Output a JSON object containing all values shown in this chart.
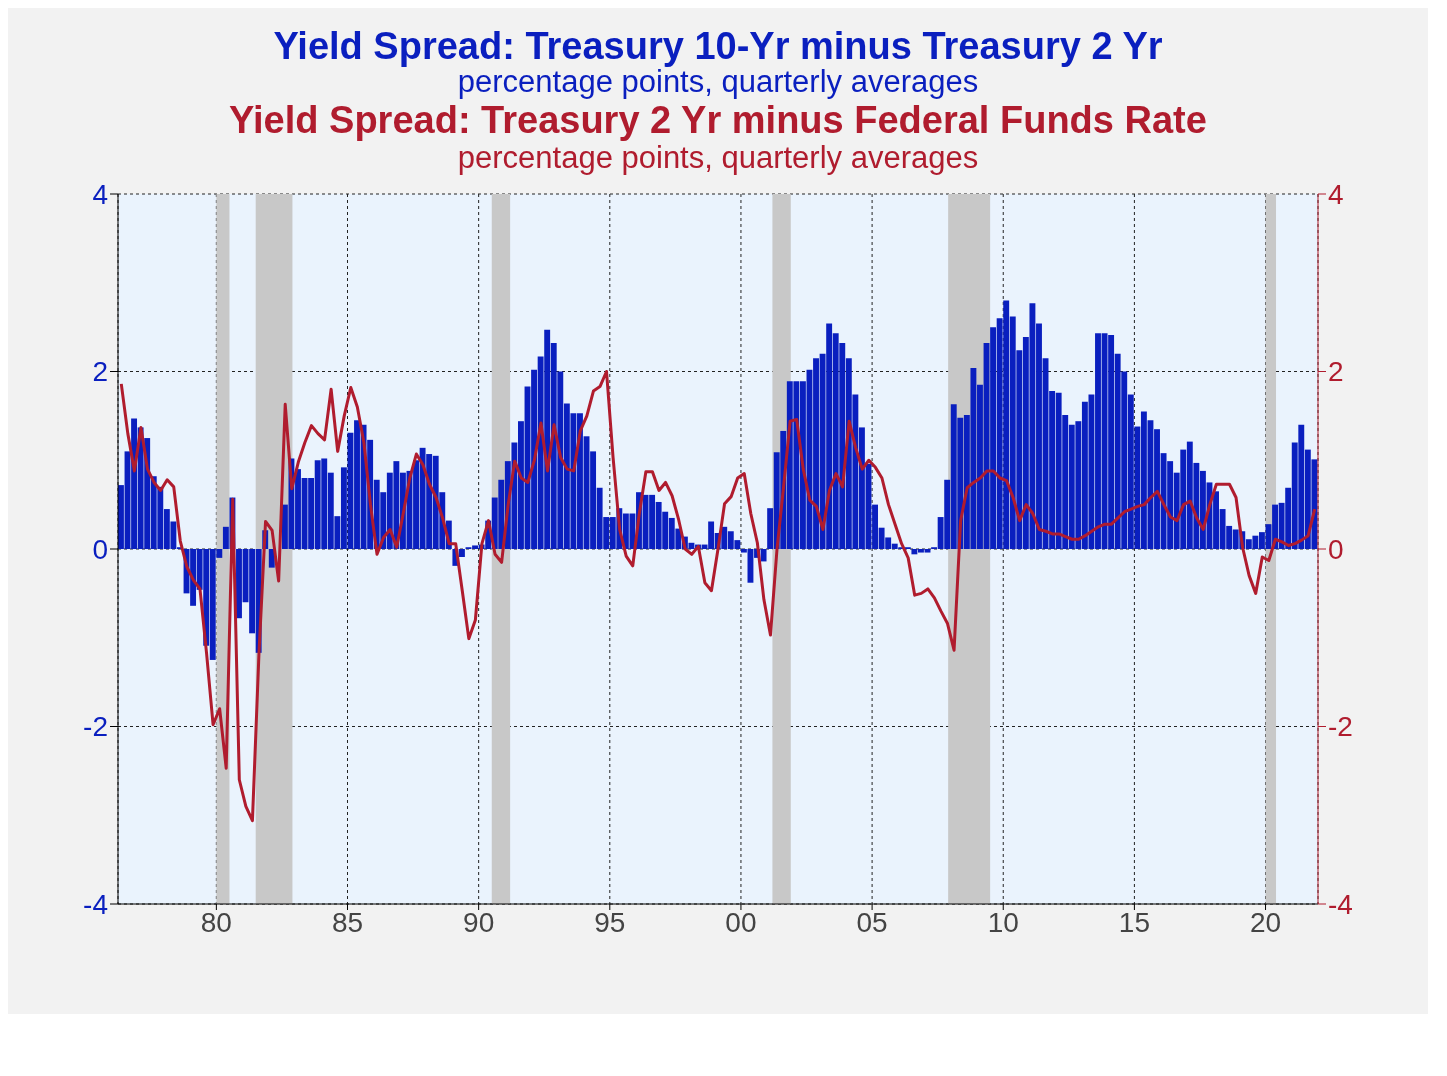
{
  "chart_data": {
    "type": "bar",
    "title": "Yield Spread: Treasury 10-Yr minus Treasury 2 Yr",
    "subtitle": "percentage points, quarterly averages",
    "annotations": [
      "Yield Spread: Treasury 2 Yr minus Federal Funds Rate",
      "percentage points, quarterly averages"
    ],
    "x": [
      1976.375,
      1976.625,
      1976.875,
      1977.125,
      1977.375,
      1977.625,
      1977.875,
      1978.125,
      1978.375,
      1978.625,
      1978.875,
      1979.125,
      1979.375,
      1979.625,
      1979.875,
      1980.125,
      1980.375,
      1980.625,
      1980.875,
      1981.125,
      1981.375,
      1981.625,
      1981.875,
      1982.125,
      1982.375,
      1982.625,
      1982.875,
      1983.125,
      1983.375,
      1983.625,
      1983.875,
      1984.125,
      1984.375,
      1984.625,
      1984.875,
      1985.125,
      1985.375,
      1985.625,
      1985.875,
      1986.125,
      1986.375,
      1986.625,
      1986.875,
      1987.125,
      1987.375,
      1987.625,
      1987.875,
      1988.125,
      1988.375,
      1988.625,
      1988.875,
      1989.125,
      1989.375,
      1989.625,
      1989.875,
      1990.125,
      1990.375,
      1990.625,
      1990.875,
      1991.125,
      1991.375,
      1991.625,
      1991.875,
      1992.125,
      1992.375,
      1992.625,
      1992.875,
      1993.125,
      1993.375,
      1993.625,
      1993.875,
      1994.125,
      1994.375,
      1994.625,
      1994.875,
      1995.125,
      1995.375,
      1995.625,
      1995.875,
      1996.125,
      1996.375,
      1996.625,
      1996.875,
      1997.125,
      1997.375,
      1997.625,
      1997.875,
      1998.125,
      1998.375,
      1998.625,
      1998.875,
      1999.125,
      1999.375,
      1999.625,
      1999.875,
      2000.125,
      2000.375,
      2000.625,
      2000.875,
      2001.125,
      2001.375,
      2001.625,
      2001.875,
      2002.125,
      2002.375,
      2002.625,
      2002.875,
      2003.125,
      2003.375,
      2003.625,
      2003.875,
      2004.125,
      2004.375,
      2004.625,
      2004.875,
      2005.125,
      2005.375,
      2005.625,
      2005.875,
      2006.125,
      2006.375,
      2006.625,
      2006.875,
      2007.125,
      2007.375,
      2007.625,
      2007.875,
      2008.125,
      2008.375,
      2008.625,
      2008.875,
      2009.125,
      2009.375,
      2009.625,
      2009.875,
      2010.125,
      2010.375,
      2010.625,
      2010.875,
      2011.125,
      2011.375,
      2011.625,
      2011.875,
      2012.125,
      2012.375,
      2012.625,
      2012.875,
      2013.125,
      2013.375,
      2013.625,
      2013.875,
      2014.125,
      2014.375,
      2014.625,
      2014.875,
      2015.125,
      2015.375,
      2015.625,
      2015.875,
      2016.125,
      2016.375,
      2016.625,
      2016.875,
      2017.125,
      2017.375,
      2017.625,
      2017.875,
      2018.125,
      2018.375,
      2018.625,
      2018.875,
      2019.125,
      2019.375,
      2019.625,
      2019.875,
      2020.125,
      2020.375,
      2020.625,
      2020.875,
      2021.125,
      2021.375,
      2021.625,
      2021.875
    ],
    "series": [
      {
        "color": "#0a1fbf",
        "values": [
          0.72,
          1.1,
          1.47,
          1.37,
          1.25,
          0.82,
          0.7,
          0.45,
          0.31,
          0.02,
          -0.5,
          -0.64,
          -0.46,
          -1.09,
          -1.25,
          -0.1,
          0.25,
          0.58,
          -0.78,
          -0.6,
          -0.95,
          -1.17,
          0.21,
          -0.21,
          0.0,
          0.5,
          1.02,
          0.9,
          0.8,
          0.8,
          1.0,
          1.02,
          0.86,
          0.37,
          0.92,
          1.31,
          1.45,
          1.4,
          1.23,
          0.78,
          0.64,
          0.86,
          0.99,
          0.86,
          0.88,
          1.0,
          1.14,
          1.07,
          1.05,
          0.64,
          0.32,
          -0.19,
          -0.09,
          0.02,
          0.04,
          0.05,
          0.32,
          0.58,
          0.78,
          0.99,
          1.2,
          1.44,
          1.83,
          2.02,
          2.17,
          2.47,
          2.32,
          2.0,
          1.64,
          1.53,
          1.53,
          1.27,
          1.1,
          0.69,
          0.36,
          0.36,
          0.46,
          0.4,
          0.4,
          0.64,
          0.61,
          0.61,
          0.53,
          0.42,
          0.35,
          0.23,
          0.14,
          0.07,
          0.05,
          0.05,
          0.31,
          0.18,
          0.25,
          0.2,
          0.1,
          -0.04,
          -0.38,
          -0.1,
          -0.14,
          0.46,
          1.09,
          1.33,
          1.89,
          1.89,
          1.89,
          2.02,
          2.15,
          2.2,
          2.54,
          2.43,
          2.32,
          2.15,
          1.74,
          1.37,
          0.96,
          0.5,
          0.24,
          0.13,
          0.06,
          0.02,
          0.02,
          -0.06,
          -0.04,
          -0.04,
          0.02,
          0.36,
          0.78,
          1.63,
          1.48,
          1.51,
          2.04,
          1.85,
          2.32,
          2.5,
          2.6,
          2.8,
          2.62,
          2.24,
          2.39,
          2.77,
          2.54,
          2.15,
          1.78,
          1.76,
          1.51,
          1.4,
          1.44,
          1.66,
          1.74,
          2.43,
          2.43,
          2.41,
          2.2,
          2.0,
          1.74,
          1.38,
          1.55,
          1.45,
          1.35,
          1.08,
          0.99,
          0.86,
          1.12,
          1.21,
          0.97,
          0.88,
          0.75,
          0.65,
          0.45,
          0.26,
          0.22,
          0.2,
          0.11,
          0.15,
          0.19,
          0.28,
          0.5,
          0.52,
          0.69,
          1.2,
          1.4,
          1.12,
          1.01
        ]
      },
      {
        "type": "line",
        "axis": "y2",
        "color": "#b01c2e",
        "values": [
          1.86,
          1.3,
          0.88,
          1.37,
          0.9,
          0.75,
          0.66,
          0.78,
          0.7,
          0.09,
          -0.2,
          -0.35,
          -0.45,
          -1.17,
          -1.98,
          -1.8,
          -2.47,
          0.56,
          -2.6,
          -2.9,
          -3.06,
          -1.17,
          0.31,
          0.21,
          -0.36,
          1.63,
          0.68,
          0.98,
          1.2,
          1.39,
          1.3,
          1.23,
          1.8,
          1.1,
          1.5,
          1.82,
          1.6,
          1.2,
          0.5,
          -0.06,
          0.13,
          0.22,
          0.02,
          0.4,
          0.8,
          1.07,
          0.95,
          0.73,
          0.58,
          0.35,
          0.06,
          0.06,
          -0.47,
          -1.01,
          -0.8,
          0.06,
          0.32,
          -0.06,
          -0.15,
          0.5,
          0.99,
          0.8,
          0.75,
          1.0,
          1.42,
          0.88,
          1.4,
          1.03,
          0.9,
          0.88,
          1.33,
          1.5,
          1.78,
          1.83,
          2.0,
          1.03,
          0.22,
          -0.08,
          -0.19,
          0.4,
          0.87,
          0.87,
          0.66,
          0.75,
          0.6,
          0.33,
          0.0,
          -0.06,
          0.03,
          -0.38,
          -0.47,
          0.0,
          0.51,
          0.59,
          0.8,
          0.85,
          0.4,
          0.07,
          -0.57,
          -0.97,
          0.0,
          0.7,
          1.44,
          1.46,
          0.9,
          0.55,
          0.48,
          0.22,
          0.66,
          0.85,
          0.7,
          1.44,
          1.14,
          0.9,
          1.0,
          0.92,
          0.8,
          0.5,
          0.28,
          0.06,
          -0.1,
          -0.52,
          -0.5,
          -0.45,
          -0.55,
          -0.7,
          -0.84,
          -1.14,
          0.32,
          0.69,
          0.75,
          0.8,
          0.88,
          0.88,
          0.8,
          0.77,
          0.58,
          0.32,
          0.5,
          0.4,
          0.22,
          0.2,
          0.17,
          0.17,
          0.14,
          0.11,
          0.11,
          0.15,
          0.2,
          0.25,
          0.28,
          0.28,
          0.35,
          0.42,
          0.45,
          0.48,
          0.5,
          0.58,
          0.65,
          0.5,
          0.36,
          0.32,
          0.5,
          0.54,
          0.35,
          0.22,
          0.5,
          0.73,
          0.73,
          0.73,
          0.58,
          0.02,
          -0.3,
          -0.5,
          -0.09,
          -0.13,
          0.11,
          0.08,
          0.04,
          0.06,
          0.1,
          0.15,
          0.45
        ]
      }
    ],
    "xlim": [
      1976.25,
      2022.0
    ],
    "xticks": [
      {
        "value": 1980,
        "label": "80"
      },
      {
        "value": 1985,
        "label": "85"
      },
      {
        "value": 1990,
        "label": "90"
      },
      {
        "value": 1995,
        "label": "95"
      },
      {
        "value": 2000,
        "label": "00"
      },
      {
        "value": 2005,
        "label": "05"
      },
      {
        "value": 2010,
        "label": "10"
      },
      {
        "value": 2015,
        "label": "15"
      },
      {
        "value": 2020,
        "label": "20"
      }
    ],
    "ylim": [
      -4,
      4
    ],
    "yticks": [
      -4,
      -2,
      0,
      2,
      4
    ],
    "y2lim": [
      -4,
      4
    ],
    "y2ticks": [
      -4,
      -2,
      0,
      2,
      4
    ],
    "bands": [
      {
        "axis": "x",
        "from": 1980.0,
        "to": 1980.5,
        "color": "#c8c8c8"
      },
      {
        "axis": "x",
        "from": 1981.5,
        "to": 1982.9,
        "color": "#c8c8c8"
      },
      {
        "axis": "x",
        "from": 1990.5,
        "to": 1991.2,
        "color": "#c8c8c8"
      },
      {
        "axis": "x",
        "from": 2001.2,
        "to": 2001.9,
        "color": "#c8c8c8"
      },
      {
        "axis": "x",
        "from": 2007.9,
        "to": 2009.5,
        "color": "#c8c8c8"
      },
      {
        "axis": "x",
        "from": 2020.0,
        "to": 2020.4,
        "color": "#c8c8c8"
      }
    ],
    "grid": true,
    "legend": false
  }
}
